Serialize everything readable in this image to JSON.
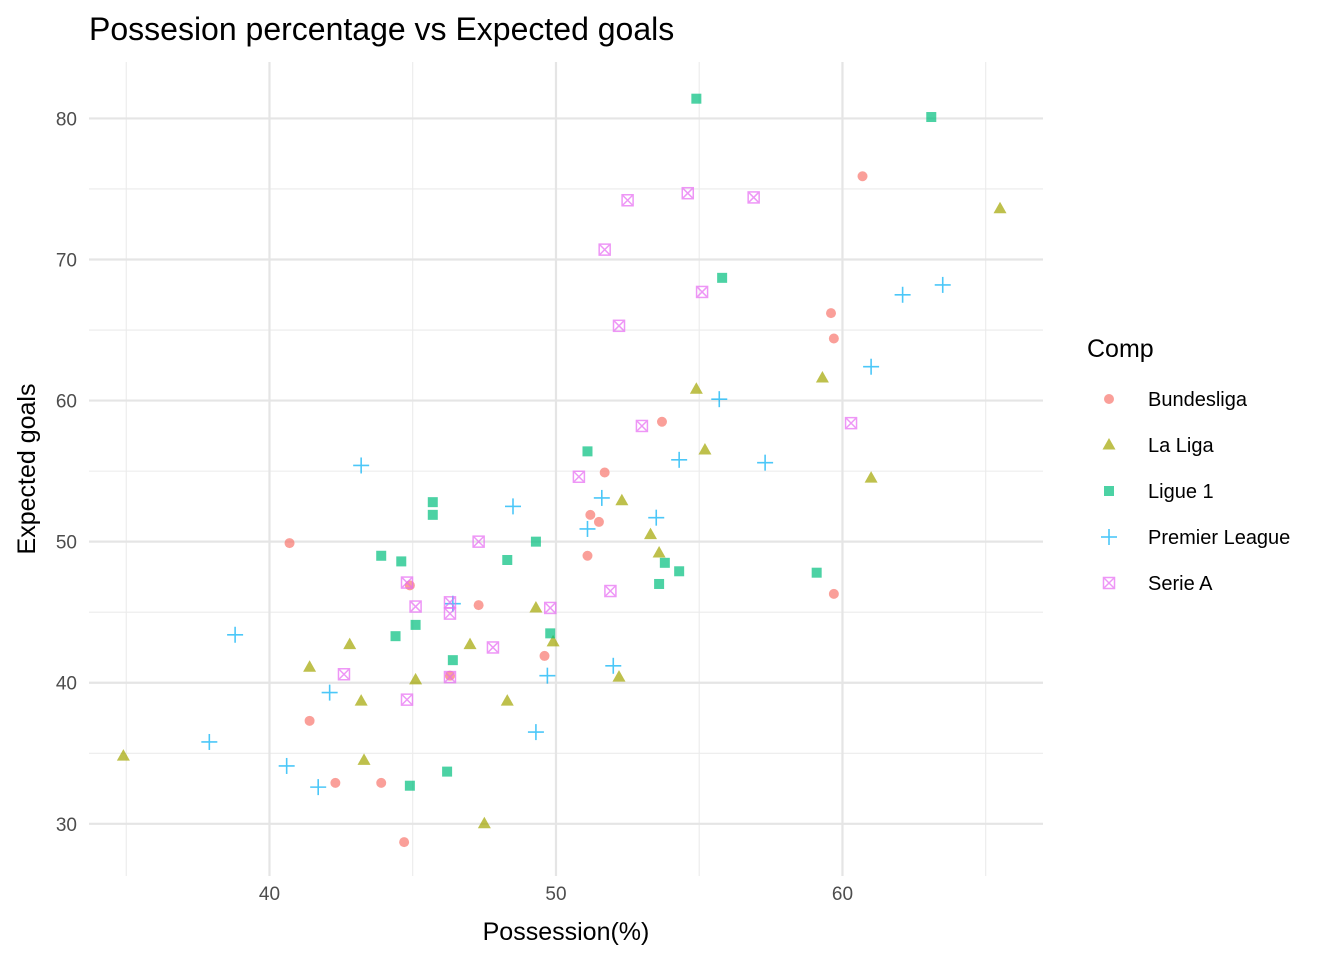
{
  "chart_data": {
    "type": "scatter",
    "title": "Possesion percentage vs Expected goals",
    "xlabel": "Possession(%)",
    "ylabel": "Expected goals",
    "xlim": [
      33.7,
      67
    ],
    "ylim": [
      26.3,
      84
    ],
    "x_ticks": [
      40,
      50,
      60
    ],
    "y_ticks": [
      30,
      40,
      50,
      60,
      70,
      80
    ],
    "grid": true,
    "legend": {
      "title": "Comp",
      "position": "right"
    },
    "series": [
      {
        "name": "Bundesliga",
        "color": "#F8766D",
        "shape": "circle",
        "points": [
          [
            60.7,
            75.9
          ],
          [
            59.6,
            66.2
          ],
          [
            59.7,
            64.4
          ],
          [
            53.7,
            58.5
          ],
          [
            51.7,
            54.9
          ],
          [
            51.2,
            51.9
          ],
          [
            51.5,
            51.4
          ],
          [
            51.1,
            49.0
          ],
          [
            40.7,
            49.9
          ],
          [
            44.9,
            46.9
          ],
          [
            47.3,
            45.5
          ],
          [
            59.7,
            46.3
          ],
          [
            49.6,
            41.9
          ],
          [
            46.3,
            40.5
          ],
          [
            41.4,
            37.3
          ],
          [
            42.3,
            32.9
          ],
          [
            43.9,
            32.9
          ],
          [
            44.7,
            28.7
          ]
        ]
      },
      {
        "name": "La Liga",
        "color": "#A3A500",
        "shape": "triangle",
        "points": [
          [
            65.5,
            73.6
          ],
          [
            54.9,
            60.8
          ],
          [
            59.3,
            61.6
          ],
          [
            55.2,
            56.5
          ],
          [
            61.0,
            54.5
          ],
          [
            52.3,
            52.9
          ],
          [
            53.3,
            50.5
          ],
          [
            53.6,
            49.2
          ],
          [
            49.3,
            45.3
          ],
          [
            49.9,
            42.9
          ],
          [
            47.0,
            42.7
          ],
          [
            42.8,
            42.7
          ],
          [
            41.4,
            41.1
          ],
          [
            45.1,
            40.2
          ],
          [
            52.2,
            40.4
          ],
          [
            43.2,
            38.7
          ],
          [
            48.3,
            38.7
          ],
          [
            43.3,
            34.5
          ],
          [
            34.9,
            34.8
          ],
          [
            47.5,
            30.0
          ]
        ]
      },
      {
        "name": "Ligue 1",
        "color": "#00BF7D",
        "shape": "square",
        "points": [
          [
            54.9,
            81.4
          ],
          [
            63.1,
            80.1
          ],
          [
            55.8,
            68.7
          ],
          [
            51.1,
            56.4
          ],
          [
            45.7,
            52.8
          ],
          [
            45.7,
            51.9
          ],
          [
            49.3,
            50.0
          ],
          [
            43.9,
            49.0
          ],
          [
            44.6,
            48.6
          ],
          [
            48.3,
            48.7
          ],
          [
            53.8,
            48.5
          ],
          [
            54.3,
            47.9
          ],
          [
            59.1,
            47.8
          ],
          [
            53.6,
            47.0
          ],
          [
            45.1,
            44.1
          ],
          [
            49.8,
            43.5
          ],
          [
            44.4,
            43.3
          ],
          [
            46.4,
            41.6
          ],
          [
            44.9,
            32.7
          ],
          [
            46.2,
            33.7
          ]
        ]
      },
      {
        "name": "Premier League",
        "color": "#00B0F6",
        "shape": "plus",
        "points": [
          [
            63.5,
            68.2
          ],
          [
            62.1,
            67.5
          ],
          [
            61.0,
            62.4
          ],
          [
            55.7,
            60.1
          ],
          [
            54.3,
            55.8
          ],
          [
            57.3,
            55.6
          ],
          [
            43.2,
            55.4
          ],
          [
            51.6,
            53.1
          ],
          [
            48.5,
            52.5
          ],
          [
            53.5,
            51.7
          ],
          [
            51.1,
            50.9
          ],
          [
            46.4,
            45.6
          ],
          [
            38.8,
            43.4
          ],
          [
            52.0,
            41.2
          ],
          [
            49.7,
            40.5
          ],
          [
            42.1,
            39.3
          ],
          [
            49.3,
            36.5
          ],
          [
            37.9,
            35.8
          ],
          [
            40.6,
            34.1
          ],
          [
            41.7,
            32.6
          ]
        ]
      },
      {
        "name": "Serie A",
        "color": "#E76BF3",
        "shape": "square-cross",
        "points": [
          [
            54.6,
            74.7
          ],
          [
            56.9,
            74.4
          ],
          [
            52.5,
            74.2
          ],
          [
            51.7,
            70.7
          ],
          [
            55.1,
            67.7
          ],
          [
            52.2,
            65.3
          ],
          [
            60.3,
            58.4
          ],
          [
            53.0,
            58.2
          ],
          [
            50.8,
            54.6
          ],
          [
            47.3,
            50.0
          ],
          [
            44.8,
            47.1
          ],
          [
            46.3,
            45.7
          ],
          [
            45.1,
            45.4
          ],
          [
            49.8,
            45.3
          ],
          [
            46.3,
            44.9
          ],
          [
            51.9,
            46.5
          ],
          [
            47.8,
            42.5
          ],
          [
            42.6,
            40.6
          ],
          [
            46.3,
            40.4
          ],
          [
            44.8,
            38.8
          ]
        ]
      }
    ]
  }
}
